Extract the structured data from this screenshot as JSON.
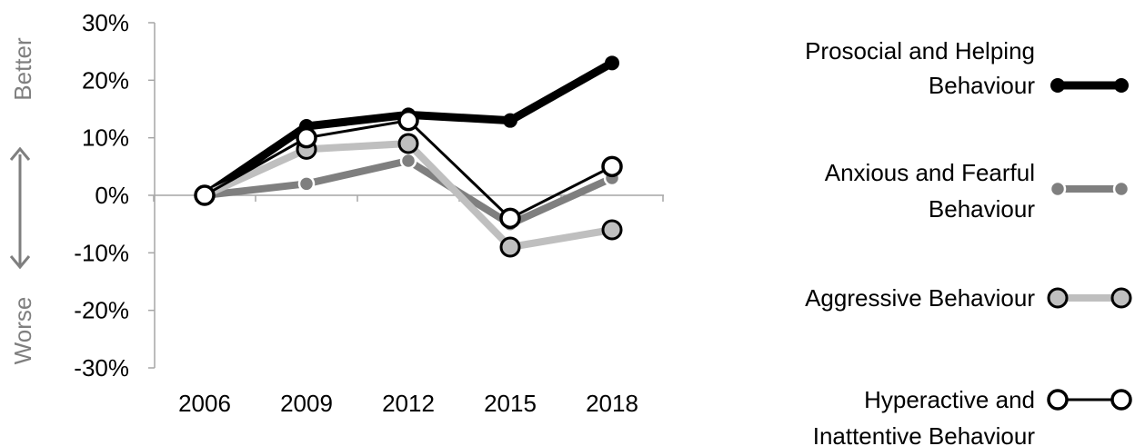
{
  "chart_data": {
    "type": "line",
    "categories": [
      "2006",
      "2009",
      "2012",
      "2015",
      "2018"
    ],
    "y_ticks": [
      "30%",
      "20%",
      "10%",
      "0%",
      "-10%",
      "-20%",
      "-30%"
    ],
    "ylim": [
      -30,
      30
    ],
    "direction_labels": {
      "better": "Better",
      "worse": "Worse"
    },
    "legend_position": "right",
    "series": [
      {
        "name": "Prosocial and Helping Behaviour",
        "label_lines": [
          "Prosocial and Helping",
          "Behaviour"
        ],
        "values": [
          0,
          12,
          14,
          13,
          23
        ],
        "color": "#000000"
      },
      {
        "name": "Anxious and Fearful Behaviour",
        "label_lines": [
          "Anxious and Fearful",
          "Behaviour"
        ],
        "values": [
          0,
          2,
          6,
          -5,
          3
        ],
        "color": "#7f7f7f"
      },
      {
        "name": "Aggressive Behaviour",
        "label_lines": [
          "Aggressive Behaviour"
        ],
        "values": [
          0,
          8,
          9,
          -9,
          -6
        ],
        "color": "#bfbfbf"
      },
      {
        "name": "Hyperactive and Inattentive Behaviour",
        "label_lines": [
          "Hyperactive and",
          "Inattentive Behaviour"
        ],
        "values": [
          0,
          10,
          13,
          -4,
          5
        ],
        "color": "#000000"
      }
    ]
  }
}
